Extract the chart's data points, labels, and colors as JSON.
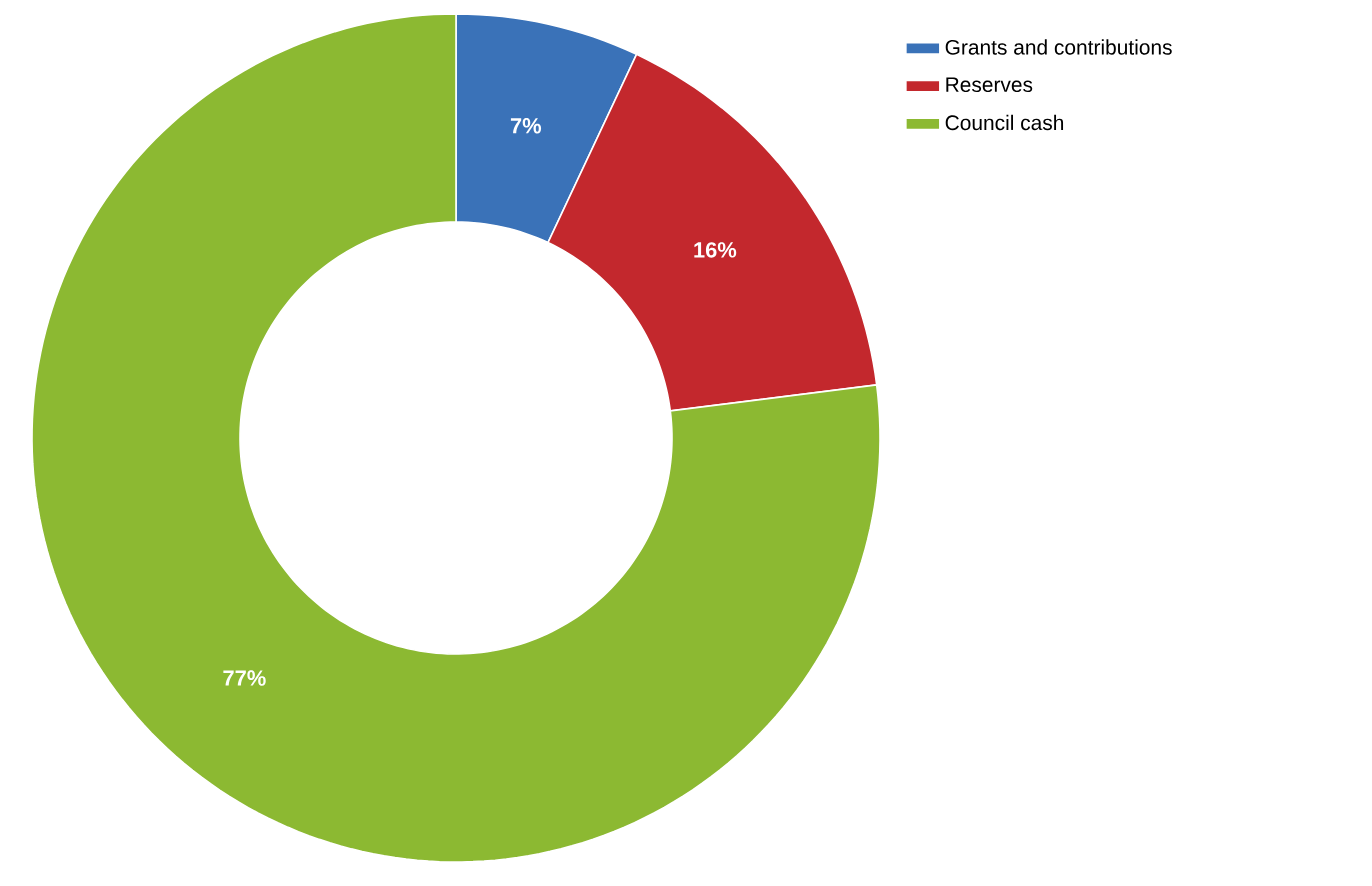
{
  "chart_data": {
    "type": "donut",
    "categories": [
      "Grants and contributions",
      "Reserves",
      "Council cash"
    ],
    "values": [
      7,
      16,
      77
    ],
    "colors": [
      "#3a72b8",
      "#c3282d",
      "#8cb932"
    ],
    "value_labels": [
      "7%",
      "16%",
      "77%"
    ],
    "legend": "right"
  }
}
